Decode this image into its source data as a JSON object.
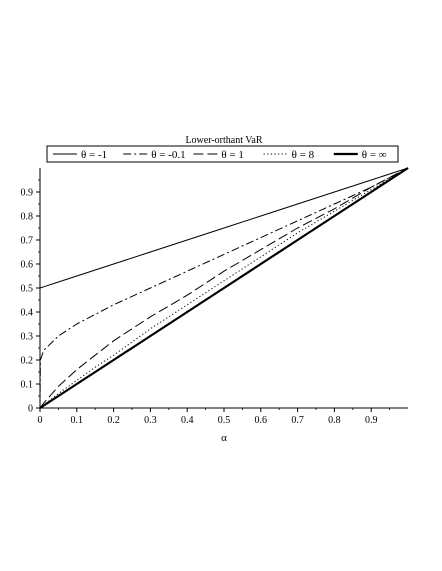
{
  "chart_data": {
    "type": "line",
    "title": "Lower-orthant VaR",
    "xlabel": "α",
    "ylabel": "",
    "xlim": [
      0,
      1
    ],
    "ylim": [
      0,
      1
    ],
    "x_ticks": [
      "0",
      "0.1",
      "0.2",
      "0.3",
      "0.4",
      "0.5",
      "0.6",
      "0.7",
      "0.8",
      "0.9"
    ],
    "y_ticks": [
      "0",
      "0.1",
      "0.2",
      "0.3",
      "0.4",
      "0.5",
      "0.6",
      "0.7",
      "0.8",
      "0.9"
    ],
    "grid": false,
    "legend_position": "top",
    "x": [
      0,
      0.001,
      0.01,
      0.05,
      0.1,
      0.15,
      0.2,
      0.3,
      0.4,
      0.5,
      0.6,
      0.7,
      0.8,
      0.9,
      1
    ],
    "series": [
      {
        "name": "θ = -1",
        "style": "solid",
        "values": [
          0.5,
          0.5005,
          0.505,
          0.525,
          0.55,
          0.575,
          0.6,
          0.65,
          0.7,
          0.75,
          0.8,
          0.85,
          0.9,
          0.95,
          1
        ]
      },
      {
        "name": "θ = -0.1",
        "style": "dashdot",
        "values": [
          0.0,
          0.2,
          0.24,
          0.3,
          0.35,
          0.39,
          0.43,
          0.5,
          0.57,
          0.64,
          0.71,
          0.78,
          0.85,
          0.92,
          1
        ]
      },
      {
        "name": "θ = 1",
        "style": "longdash",
        "values": [
          0.0,
          0.002,
          0.02,
          0.09,
          0.16,
          0.22,
          0.28,
          0.38,
          0.47,
          0.57,
          0.66,
          0.75,
          0.83,
          0.92,
          1
        ]
      },
      {
        "name": "θ = 8",
        "style": "dotted",
        "values": [
          0.0,
          0.0012,
          0.012,
          0.06,
          0.115,
          0.17,
          0.22,
          0.33,
          0.43,
          0.53,
          0.63,
          0.73,
          0.82,
          0.91,
          1
        ]
      },
      {
        "name": "θ = ∞",
        "style": "thick",
        "values": [
          0.0,
          0.001,
          0.01,
          0.05,
          0.1,
          0.15,
          0.2,
          0.3,
          0.4,
          0.5,
          0.6,
          0.7,
          0.8,
          0.9,
          1
        ]
      }
    ]
  }
}
